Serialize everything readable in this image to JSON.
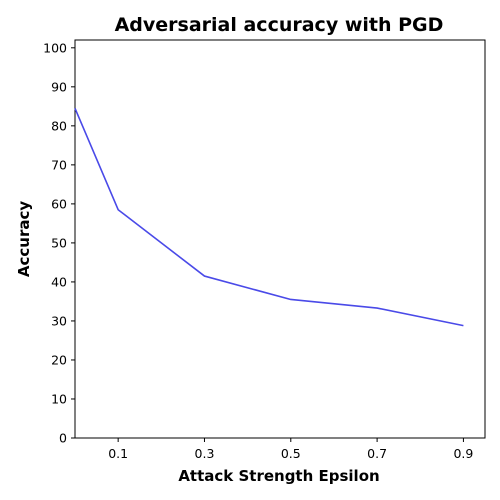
{
  "chart_data": {
    "type": "line",
    "title": "Adversarial accuracy with PGD",
    "xlabel": "Attack Strength Epsilon",
    "ylabel": "Accuracy",
    "x": [
      0.0,
      0.1,
      0.3,
      0.5,
      0.7,
      0.9
    ],
    "series": [
      {
        "values": [
          84.5,
          58.5,
          41.5,
          35.5,
          33.3,
          28.8
        ],
        "color": "#4a4ae8"
      }
    ],
    "xlim": [
      0.0,
      0.95
    ],
    "ylim": [
      0,
      102
    ],
    "xticks": [
      "0.1",
      "0.3",
      "0.5",
      "0.7",
      "0.9"
    ],
    "yticks": [
      "0",
      "10",
      "20",
      "30",
      "40",
      "50",
      "60",
      "70",
      "80",
      "90",
      "100"
    ],
    "grid": false,
    "legend": "none"
  }
}
